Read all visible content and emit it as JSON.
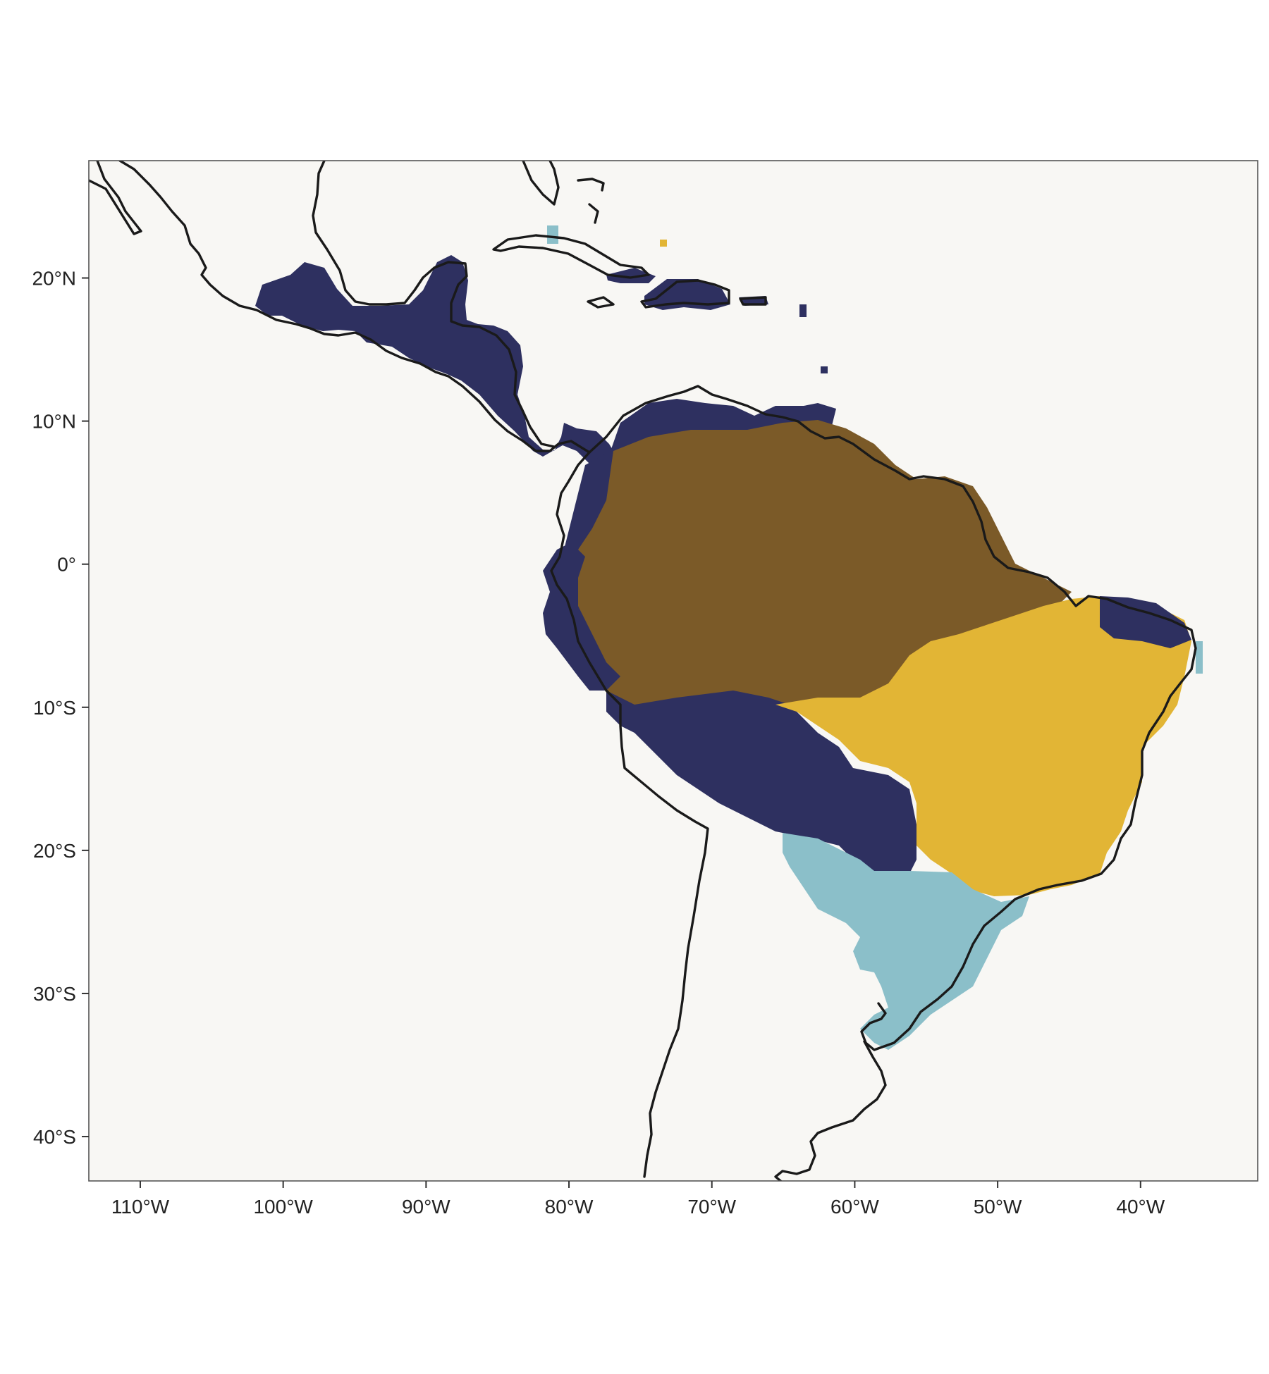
{
  "map": {
    "title": "",
    "background": "#f8f7f4",
    "frame_color": "#555555",
    "coastline_color": "#1a1a1a",
    "xlim": [
      -113.6,
      -31.8
    ],
    "ylim": [
      -43.1,
      28.2
    ],
    "x_ticks": [
      {
        "value": -110,
        "label": "110°W"
      },
      {
        "value": -100,
        "label": "100°W"
      },
      {
        "value": -90,
        "label": "90°W"
      },
      {
        "value": -80,
        "label": "80°W"
      },
      {
        "value": -70,
        "label": "70°W"
      },
      {
        "value": -60,
        "label": "60°W"
      },
      {
        "value": -50,
        "label": "50°W"
      },
      {
        "value": -40,
        "label": "40°W"
      }
    ],
    "y_ticks": [
      {
        "value": 20,
        "label": "20°N"
      },
      {
        "value": 10,
        "label": "10°N"
      },
      {
        "value": 0,
        "label": "0°"
      },
      {
        "value": -10,
        "label": "10°S"
      },
      {
        "value": -20,
        "label": "20°S"
      },
      {
        "value": -30,
        "label": "30°S"
      },
      {
        "value": -40,
        "label": "40°S"
      }
    ],
    "categories": [
      {
        "id": "dark-navy",
        "color": "#2e3060"
      },
      {
        "id": "brown",
        "color": "#7b5a28"
      },
      {
        "id": "gold",
        "color": "#e2b535"
      },
      {
        "id": "light-blue",
        "color": "#8bbfc9"
      }
    ]
  }
}
